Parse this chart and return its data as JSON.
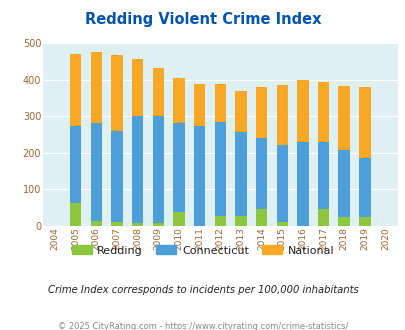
{
  "title": "Redding Violent Crime Index",
  "years": [
    "2004",
    "2005",
    "2006",
    "2007",
    "2008",
    "2009",
    "2010",
    "2011",
    "2012",
    "2013",
    "2014",
    "2015",
    "2016",
    "2017",
    "2018",
    "2019",
    "2020"
  ],
  "redding": [
    0,
    62,
    15,
    10,
    8,
    8,
    37,
    0,
    27,
    27,
    47,
    10,
    0,
    47,
    25,
    25,
    0
  ],
  "connecticut": [
    0,
    272,
    281,
    260,
    300,
    301,
    281,
    274,
    285,
    256,
    241,
    220,
    230,
    230,
    208,
    186,
    0
  ],
  "national": [
    0,
    470,
    474,
    468,
    455,
    432,
    405,
    388,
    388,
    368,
    379,
    384,
    399,
    394,
    381,
    379,
    0
  ],
  "bar_width": 0.55,
  "ylim": [
    0,
    500
  ],
  "yticks": [
    0,
    100,
    200,
    300,
    400,
    500
  ],
  "color_redding": "#8dc63f",
  "color_connecticut": "#4d9fda",
  "color_national": "#f9a825",
  "bg_color": "#dff0f5",
  "title_color": "#0055aa",
  "subtitle": "Crime Index corresponds to incidents per 100,000 inhabitants",
  "footer": "© 2025 CityRating.com - https://www.cityrating.com/crime-statistics/",
  "subtitle_color": "#222222",
  "footer_color": "#888888"
}
